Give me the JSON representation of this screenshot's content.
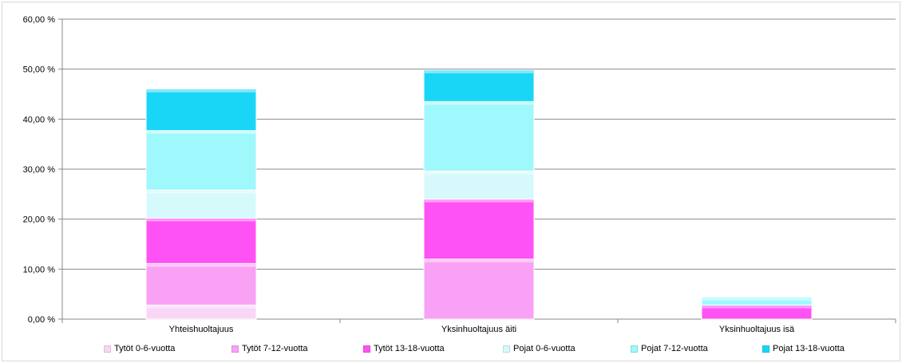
{
  "chart_data": {
    "type": "bar",
    "stacked": true,
    "categories": [
      "Yhteishuoltajuus",
      "Yksinhuoltajuus äiti",
      "Yksinhuoltajuus isä"
    ],
    "ylim": [
      0,
      60
    ],
    "yticks": [
      "0,00 %",
      "10,00 %",
      "20,00 %",
      "30,00 %",
      "40,00 %",
      "50,00 %",
      "60,00 %"
    ],
    "ytick_values": [
      0,
      10,
      20,
      30,
      40,
      50,
      60
    ],
    "grid": true,
    "legend_position": "bottom",
    "series": [
      {
        "name": "Tytöt 0-6-vuotta",
        "color": "#fad6f6",
        "values": [
          2.8,
          0.0,
          0.0
        ]
      },
      {
        "name": "Tytöt 7-12-vuotta",
        "color": "#f9a1f5",
        "values": [
          8.3,
          12.0,
          0.0
        ]
      },
      {
        "name": "Tytöt 13-18-vuotta",
        "color": "#ff52f5",
        "values": [
          9.1,
          12.0,
          2.8
        ]
      },
      {
        "name": "Pojat 0-6-vuotta",
        "color": "#d6f9fb",
        "values": [
          5.6,
          5.6,
          0.0
        ]
      },
      {
        "name": "Pojat 7-12-vuotta",
        "color": "#9ff8fc",
        "values": [
          11.9,
          13.9,
          1.6
        ]
      },
      {
        "name": "Pojat 13-18-vuotta",
        "color": "#1ad6f6",
        "values": [
          8.3,
          6.3,
          0.0
        ]
      }
    ]
  }
}
